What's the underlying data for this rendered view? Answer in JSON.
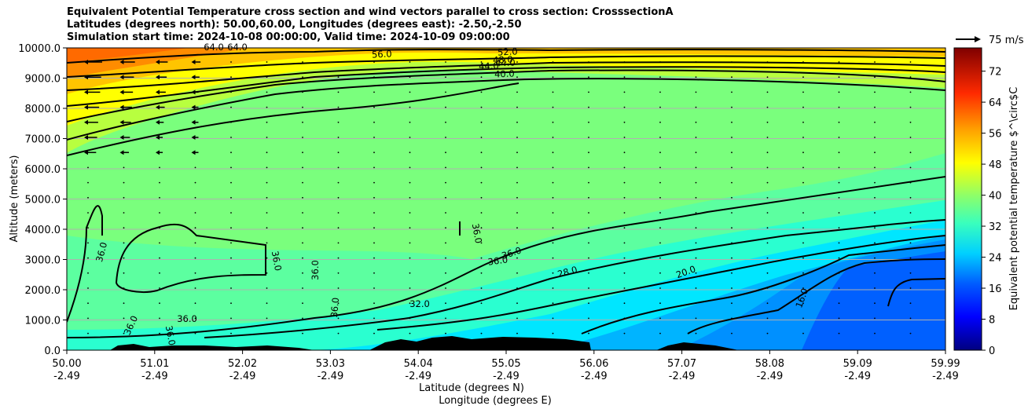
{
  "chart_data": {
    "type": "heatmap",
    "title_lines": [
      "Equivalent Potential Temperature cross section and wind vectors parallel to cross section: CrosssectionA",
      "Latitudes (degrees north): 50.00,60.00, Longitudes (degrees east): -2.50,-2.50",
      "Simulation start time: 2024-10-08 00:00:00, Valid time: 2024-10-09 09:00:00"
    ],
    "ylabel": "Altitude (meters)",
    "xlabel_lat": "Latitude (degrees N)",
    "xlabel_lon": "Longitude (degrees E)",
    "ylim": [
      0,
      10000
    ],
    "y_ticks": [
      "0.0",
      "1000.0",
      "2000.0",
      "3000.0",
      "4000.0",
      "5000.0",
      "6000.0",
      "7000.0",
      "8000.0",
      "9000.0",
      "10000.0"
    ],
    "y_tick_values": [
      0,
      1000,
      2000,
      3000,
      4000,
      5000,
      6000,
      7000,
      8000,
      9000,
      10000
    ],
    "x_ticks_lat": [
      "50.00",
      "51.01",
      "52.02",
      "53.03",
      "54.04",
      "55.05",
      "56.06",
      "57.07",
      "58.08",
      "59.09",
      "59.99"
    ],
    "x_ticks_lon": [
      "-2.49",
      "-2.49",
      "-2.49",
      "-2.49",
      "-2.49",
      "-2.49",
      "-2.49",
      "-2.49",
      "-2.49",
      "-2.49",
      "-2.49"
    ],
    "colorbar": {
      "label": "Equivalent potential temperature $^\\circ$C",
      "ticks": [
        "0",
        "8",
        "16",
        "24",
        "32",
        "40",
        "48",
        "56",
        "64",
        "72"
      ],
      "tick_values": [
        0,
        8,
        16,
        24,
        32,
        40,
        48,
        56,
        64,
        72
      ],
      "range": [
        0,
        78
      ]
    },
    "wind_key": "75 m/s",
    "contour_labels": [
      "64.0",
      "64.0",
      "56.0",
      "52.0",
      "48.0",
      "44.0",
      "44.0",
      "40.0",
      "36.0",
      "36.0",
      "36.0",
      "36.0",
      "36.0",
      "36.0",
      "36.0",
      "36.0",
      "36.0",
      "36.0",
      "32.0",
      "28.0",
      "20.0",
      "16.0"
    ],
    "theta_e_summary": {
      "upper_levels_south": 64,
      "mid_troposphere": 40,
      "lower_levels_south": 36,
      "lower_levels_north": 16
    }
  }
}
